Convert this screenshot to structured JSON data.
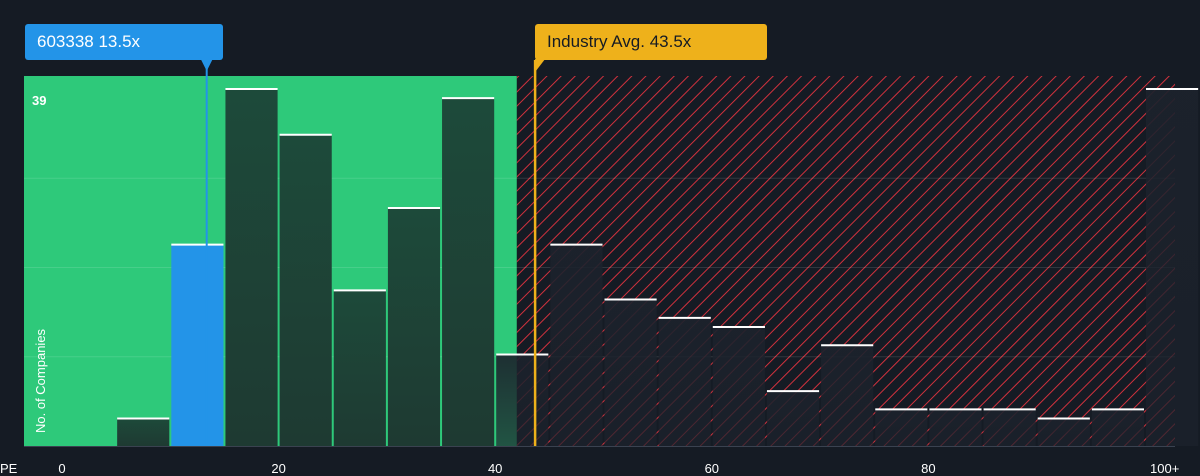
{
  "chart_data": {
    "type": "bar",
    "xlabel": "PE",
    "ylabel": "No. of Companies",
    "x_ticks": [
      "0",
      "20",
      "40",
      "60",
      "80",
      "100+"
    ],
    "y_max_label": "39",
    "bins": [
      {
        "from": 0,
        "to": 5,
        "count": 0
      },
      {
        "from": 5,
        "to": 10,
        "count": 3
      },
      {
        "from": 10,
        "to": 15,
        "count": 22
      },
      {
        "from": 15,
        "to": 20,
        "count": 39
      },
      {
        "from": 20,
        "to": 25,
        "count": 34
      },
      {
        "from": 25,
        "to": 30,
        "count": 17
      },
      {
        "from": 30,
        "to": 35,
        "count": 26
      },
      {
        "from": 35,
        "to": 40,
        "count": 38
      },
      {
        "from": 40,
        "to": 45,
        "count": 10
      },
      {
        "from": 45,
        "to": 50,
        "count": 22
      },
      {
        "from": 50,
        "to": 55,
        "count": 16
      },
      {
        "from": 55,
        "to": 60,
        "count": 14
      },
      {
        "from": 60,
        "to": 65,
        "count": 13
      },
      {
        "from": 65,
        "to": 70,
        "count": 6
      },
      {
        "from": 70,
        "to": 75,
        "count": 11
      },
      {
        "from": 75,
        "to": 80,
        "count": 4
      },
      {
        "from": 80,
        "to": 85,
        "count": 4
      },
      {
        "from": 85,
        "to": 90,
        "count": 4
      },
      {
        "from": 90,
        "to": 95,
        "count": 3
      },
      {
        "from": 95,
        "to": 100,
        "count": 4
      },
      {
        "from": 100,
        "to": 105,
        "count": 39
      }
    ],
    "company": {
      "label": "603338 13.5x",
      "pe": 13.5
    },
    "industry": {
      "label": "Industry Avg. 43.5x",
      "pe": 43.5
    },
    "fair_range_max_pe": 42,
    "xlim": [
      0,
      105
    ],
    "ylim": [
      0,
      39
    ],
    "colors": {
      "background": "#151b24",
      "fair_zone": "#2ec97a",
      "company_bar": "#2394e8",
      "industry_line": "#eeb11b",
      "hatch": "#d0313d",
      "bar_dark": "#1d4a3a"
    }
  }
}
